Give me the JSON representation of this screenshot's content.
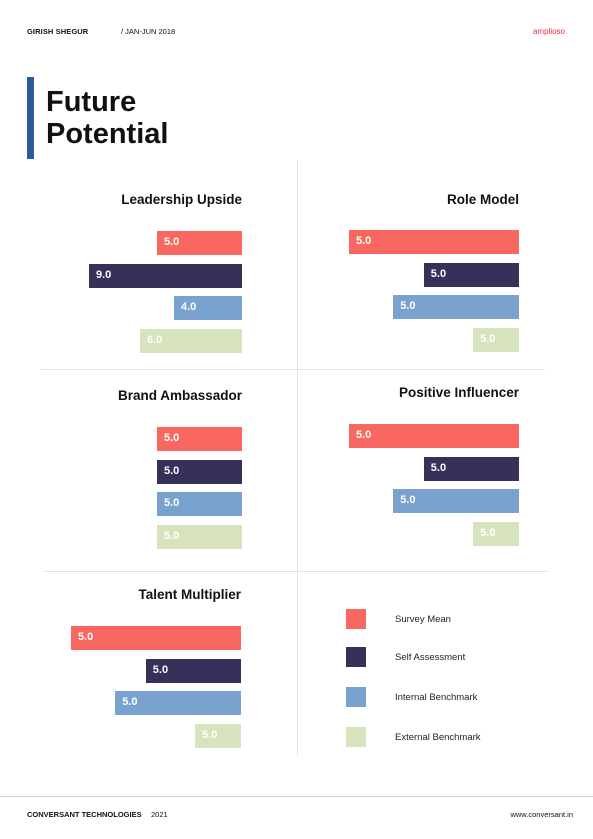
{
  "header": {
    "name": "GIRISH SHEGUR",
    "period": "/ JAN-JUN 2018",
    "brand": "amplioso"
  },
  "title": {
    "line1": "Future",
    "line2": "Potential"
  },
  "colors": {
    "survey_mean": "#f96761",
    "self_assessment": "#363158",
    "internal_benchmark": "#7aa2cf",
    "external_benchmark": "#d6e3bd",
    "title_accent": "#2d5a9c",
    "brand": "#e0313f"
  },
  "chart_data": [
    {
      "type": "bar",
      "title": "Leadership Upside",
      "categories": [
        "Survey Mean",
        "Self Assessment",
        "Internal Benchmark",
        "External Benchmark"
      ],
      "values": [
        5.0,
        9.0,
        4.0,
        6.0
      ],
      "labels": [
        "5.0",
        "9.0",
        "4.0",
        "6.0"
      ]
    },
    {
      "type": "bar",
      "title": "Role Model",
      "categories": [
        "Survey Mean",
        "Self Assessment",
        "Internal Benchmark",
        "External Benchmark"
      ],
      "values": [
        5.0,
        5.0,
        5.0,
        5.0
      ],
      "labels": [
        "5.0",
        "5.0",
        "5.0",
        "5.0"
      ]
    },
    {
      "type": "bar",
      "title": "Brand Ambassador",
      "categories": [
        "Survey Mean",
        "Self Assessment",
        "Internal Benchmark",
        "External Benchmark"
      ],
      "values": [
        5.0,
        5.0,
        5.0,
        5.0
      ],
      "labels": [
        "5.0",
        "5.0",
        "5.0",
        "5.0"
      ]
    },
    {
      "type": "bar",
      "title": "Positive Influencer",
      "categories": [
        "Survey Mean",
        "Self Assessment",
        "Internal Benchmark",
        "External Benchmark"
      ],
      "values": [
        5.0,
        5.0,
        5.0,
        5.0
      ],
      "labels": [
        "5.0",
        "5.0",
        "5.0",
        "5.0"
      ]
    },
    {
      "type": "bar",
      "title": "Talent Multiplier",
      "categories": [
        "Survey Mean",
        "Self Assessment",
        "Internal Benchmark",
        "External Benchmark"
      ],
      "values": [
        5.0,
        5.0,
        5.0,
        5.0
      ],
      "labels": [
        "5.0",
        "5.0",
        "5.0",
        "5.0"
      ]
    }
  ],
  "legend": [
    {
      "label": "Survey Mean"
    },
    {
      "label": "Self Assessment"
    },
    {
      "label": "Internal Benchmark"
    },
    {
      "label": "External Benchmark"
    }
  ],
  "footer": {
    "company": "CONVERSANT TECHNOLOGIES",
    "year": "2021",
    "url": "www.conversant.in"
  }
}
